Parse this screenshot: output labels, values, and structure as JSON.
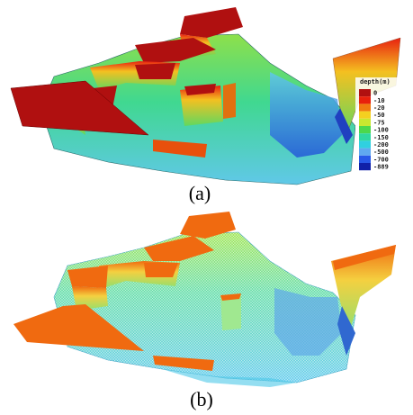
{
  "figure": {
    "panels": [
      {
        "label": "(a)"
      },
      {
        "label": "(b)"
      }
    ],
    "legend": {
      "title": "depth(m)",
      "labels": [
        "0",
        "-10",
        "-20",
        "-50",
        "-75",
        "-100",
        "-150",
        "-200",
        "-500",
        "-700",
        "-889"
      ],
      "colors": [
        "#b01010",
        "#e8200c",
        "#f07a10",
        "#f4d020",
        "#c8e830",
        "#4cd84c",
        "#30d8a0",
        "#30d0e0",
        "#60a8f0",
        "#2858e8",
        "#1020a8"
      ]
    }
  }
}
